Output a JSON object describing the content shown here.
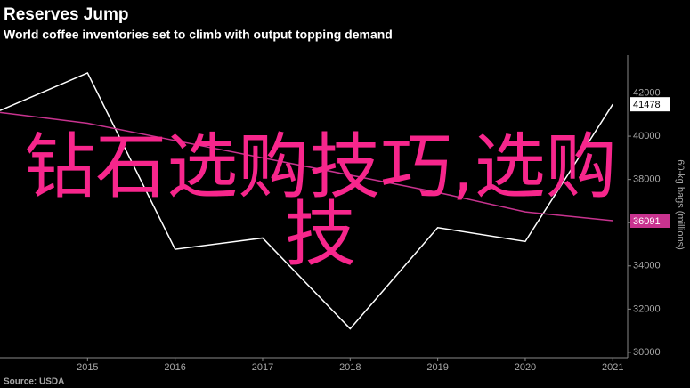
{
  "chart_data": {
    "type": "line",
    "title": "Reserves Jump",
    "subtitle": "World coffee inventories set to climb with output topping demand",
    "source": "Source: USDA",
    "y_label": "60-kg bags (millions)",
    "overlay_text": "钻石选购技巧,选购技",
    "x": [
      2014,
      2015,
      2016,
      2017,
      2018,
      2019,
      2020,
      2021
    ],
    "series": [
      {
        "color": "#ffffff",
        "values": [
          41190,
          42930,
          34770,
          35290,
          31090,
          35770,
          35130,
          41478
        ]
      },
      {
        "color": "#c8338f",
        "values": [
          41100,
          40600,
          39800,
          39000,
          38200,
          37400,
          36500,
          36091
        ]
      }
    ],
    "xlim": [
      2014,
      2021.17
    ],
    "xticks": [
      2015,
      2016,
      2017,
      2018,
      2019,
      2020,
      2021
    ],
    "ylim": [
      29750,
      43750
    ],
    "yticks": [
      30000,
      32000,
      34000,
      36000,
      38000,
      40000,
      42000
    ],
    "y_axis_side": "right",
    "grid": false
  }
}
